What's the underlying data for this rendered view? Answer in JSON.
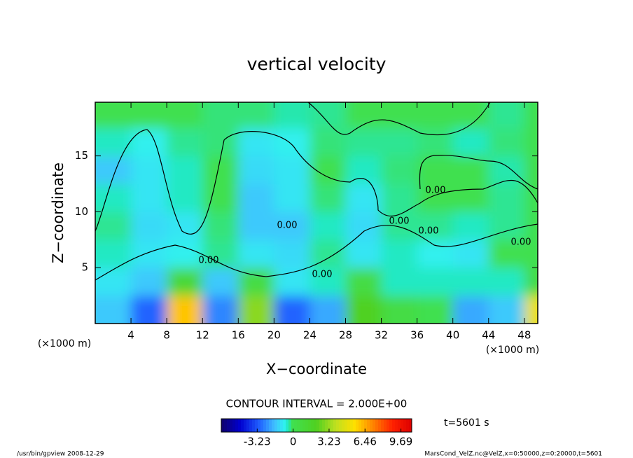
{
  "chart_data": {
    "type": "contour",
    "title": "vertical velocity",
    "x_label": "X−coordinate",
    "y_label": "Z−coordinate",
    "x_unit_label": "(×1000 m)",
    "y_unit_label": "(×1000 m)",
    "contour_interval_label": "CONTOUR INTERVAL = 2.000E+00",
    "time_label": "t=5601 s",
    "footer_left": "/usr/bin/gpview  2008-12-29",
    "footer_right": "MarsCond_VelZ.nc@VelZ,x=0:50000,z=0:20000,t=5601",
    "contour_labels": [
      "0.00",
      "0.00",
      "0.00",
      "0.00",
      "0.00",
      "0.00",
      "0.00"
    ],
    "xlim": [
      0,
      49.5
    ],
    "ylim": [
      0,
      19.8
    ],
    "xticks": [
      4,
      8,
      12,
      16,
      20,
      24,
      28,
      32,
      36,
      40,
      44,
      48
    ],
    "yticks": [
      5,
      10,
      15
    ],
    "x": [
      2,
      6,
      10,
      14,
      18,
      22,
      26,
      30,
      34,
      38,
      42,
      46,
      50
    ],
    "y": [
      1.25,
      3.75,
      6.25,
      8.75,
      11.25,
      13.75,
      16.25,
      18.75
    ],
    "z": [
      [
        -1.5,
        -3,
        6,
        -2.5,
        3,
        -3,
        -2,
        2,
        0.5,
        0,
        -2,
        -1.5,
        5
      ],
      [
        -1,
        -1.5,
        1,
        -1.5,
        0.5,
        -1,
        -0.5,
        0.5,
        -0.5,
        -0.5,
        -0.5,
        -0.5,
        0.5
      ],
      [
        -0.5,
        -1,
        -0.8,
        -0.3,
        -1,
        -1.2,
        -0.3,
        -1,
        -0.5,
        -0.8,
        -1,
        0,
        0
      ],
      [
        -0.3,
        -1.2,
        -1,
        -0.2,
        -1.5,
        -1.5,
        -0.5,
        -1.2,
        -0.3,
        -0.3,
        -0.5,
        -0.3,
        0
      ],
      [
        -0.5,
        -1,
        -0.5,
        0,
        -1.5,
        -1,
        -0.2,
        -1,
        -0.3,
        0,
        0,
        -0.3,
        0
      ],
      [
        -1.5,
        -1,
        -0.5,
        0,
        -1.2,
        -1,
        0,
        -0.5,
        -0.2,
        0,
        0,
        -0.4,
        0.2
      ],
      [
        -0.5,
        -0.8,
        -0.3,
        -0.2,
        -1,
        -0.8,
        -0.2,
        -0.3,
        -0.3,
        -0.2,
        -0.5,
        -0.2,
        0
      ],
      [
        0,
        0,
        0,
        -0.2,
        -0.2,
        -0.4,
        -0.3,
        0,
        0,
        0,
        0,
        -0.3,
        0
      ]
    ],
    "clim": [
      -6.46,
      10.66
    ],
    "cticks": [
      -3.23,
      0,
      3.23,
      6.46,
      9.69
    ]
  }
}
